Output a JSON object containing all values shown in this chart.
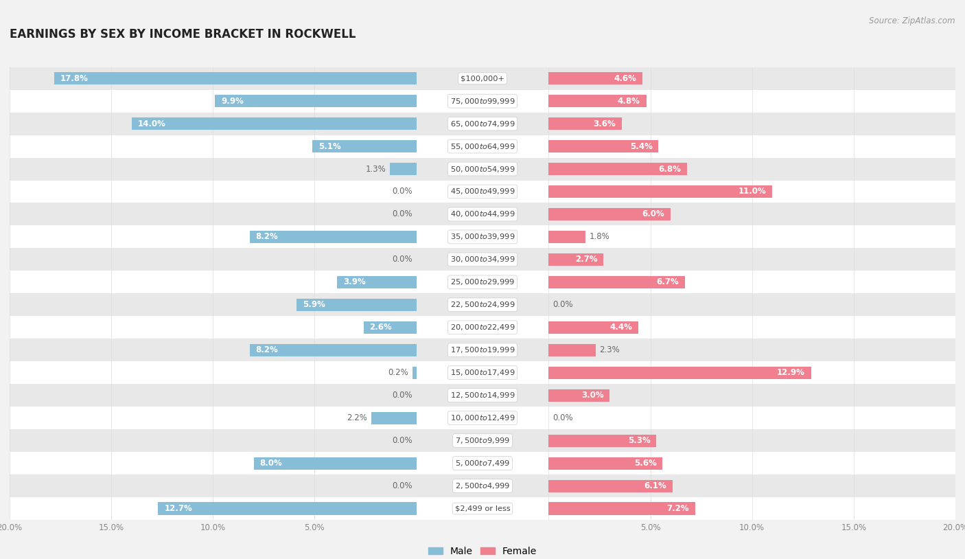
{
  "title": "EARNINGS BY SEX BY INCOME BRACKET IN ROCKWELL",
  "source": "Source: ZipAtlas.com",
  "categories": [
    "$2,499 or less",
    "$2,500 to $4,999",
    "$5,000 to $7,499",
    "$7,500 to $9,999",
    "$10,000 to $12,499",
    "$12,500 to $14,999",
    "$15,000 to $17,499",
    "$17,500 to $19,999",
    "$20,000 to $22,499",
    "$22,500 to $24,999",
    "$25,000 to $29,999",
    "$30,000 to $34,999",
    "$35,000 to $39,999",
    "$40,000 to $44,999",
    "$45,000 to $49,999",
    "$50,000 to $54,999",
    "$55,000 to $64,999",
    "$65,000 to $74,999",
    "$75,000 to $99,999",
    "$100,000+"
  ],
  "male_values": [
    12.7,
    0.0,
    8.0,
    0.0,
    2.2,
    0.0,
    0.2,
    8.2,
    2.6,
    5.9,
    3.9,
    0.0,
    8.2,
    0.0,
    0.0,
    1.3,
    5.1,
    14.0,
    9.9,
    17.8
  ],
  "female_values": [
    7.2,
    6.1,
    5.6,
    5.3,
    0.0,
    3.0,
    12.9,
    2.3,
    4.4,
    0.0,
    6.7,
    2.7,
    1.8,
    6.0,
    11.0,
    6.8,
    5.4,
    3.6,
    4.8,
    4.6
  ],
  "male_color": "#88bdd8",
  "female_color": "#f08090",
  "bg_color": "#f2f2f2",
  "row_color_light": "#ffffff",
  "row_color_dark": "#e8e8e8",
  "axis_limit": 20.0,
  "bar_height": 0.55,
  "label_threshold": 2.5,
  "inside_label_color": "#ffffff",
  "outside_label_color": "#666666",
  "category_label_color": "#444444",
  "tick_label_color": "#888888",
  "title_color": "#222222",
  "source_color": "#999999"
}
